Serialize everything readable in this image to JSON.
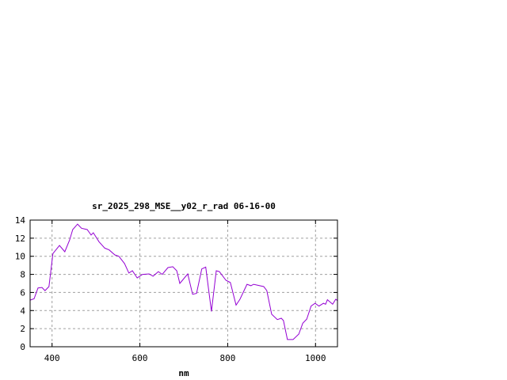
{
  "chart_data": {
    "type": "line",
    "title": "sr_2025_298_MSE__y02_r_rad 06-16-00",
    "xlabel": "nm",
    "ylabel": "",
    "xlim": [
      350,
      1050
    ],
    "ylim": [
      0,
      14
    ],
    "xticks": [
      400,
      600,
      800,
      1000
    ],
    "yticks": [
      0,
      2,
      4,
      6,
      8,
      10,
      12,
      14
    ],
    "grid": true,
    "series": [
      {
        "color": "#9400d3",
        "x": [
          350,
          359,
          368,
          377,
          384,
          393,
          402,
          417,
          429,
          440,
          447,
          458,
          467,
          480,
          489,
          494,
          507,
          520,
          530,
          543,
          552,
          565,
          575,
          583,
          594,
          606,
          621,
          630,
          642,
          651,
          664,
          675,
          684,
          691,
          709,
          720,
          729,
          741,
          750,
          763,
          774,
          781,
          796,
          806,
          819,
          828,
          844,
          853,
          859,
          882,
          889,
          900,
          913,
          922,
          927,
          936,
          949,
          962,
          971,
          980,
          990,
          999,
          1008,
          1018,
          1023,
          1027,
          1039,
          1046,
          1050
        ],
        "y": [
          5.15,
          5.3,
          6.5,
          6.55,
          6.2,
          6.65,
          10.3,
          11.2,
          10.5,
          11.8,
          12.95,
          13.55,
          13.1,
          12.95,
          12.35,
          12.6,
          11.6,
          10.9,
          10.7,
          10.15,
          10.0,
          9.2,
          8.15,
          8.4,
          7.6,
          8.0,
          8.05,
          7.8,
          8.3,
          8.0,
          8.75,
          8.85,
          8.4,
          7.0,
          8.05,
          5.8,
          5.9,
          8.6,
          8.8,
          3.9,
          8.4,
          8.3,
          7.35,
          7.1,
          4.6,
          5.25,
          6.9,
          6.75,
          6.9,
          6.65,
          6.2,
          3.6,
          3.0,
          3.15,
          2.9,
          0.8,
          0.8,
          1.4,
          2.6,
          3.05,
          4.5,
          4.8,
          4.5,
          4.8,
          4.7,
          5.2,
          4.7,
          5.25,
          5.1
        ]
      }
    ]
  }
}
